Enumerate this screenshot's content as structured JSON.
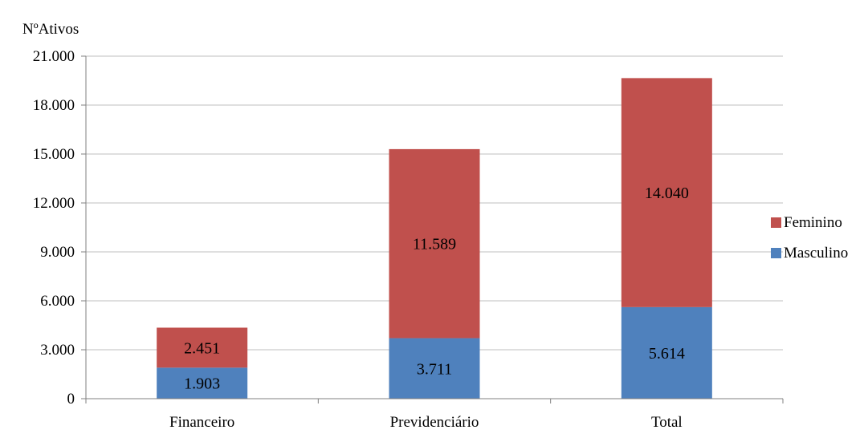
{
  "chart_data": {
    "type": "bar",
    "stacked": true,
    "title": "",
    "ylabel": "NºAtivos",
    "xlabel": "",
    "categories": [
      "Financeiro",
      "Previdenciário",
      "Total"
    ],
    "series": [
      {
        "name": "Masculino",
        "values": [
          1903,
          3711,
          5614
        ],
        "labels": [
          "1.903",
          "3.711",
          "5.614"
        ],
        "color": "#4f81bd"
      },
      {
        "name": "Feminino",
        "values": [
          2451,
          11589,
          14040
        ],
        "labels": [
          "2.451",
          "11.589",
          "14.040"
        ],
        "color": "#c0504d"
      }
    ],
    "ylim": [
      0,
      21000
    ],
    "yticks": [
      0,
      3000,
      6000,
      9000,
      12000,
      15000,
      18000,
      21000
    ],
    "ytick_labels": [
      "0",
      "3.000",
      "6.000",
      "9.000",
      "12.000",
      "15.000",
      "18.000",
      "21.000"
    ],
    "grid": true,
    "legend": {
      "placement": "right",
      "entries": [
        "Feminino",
        "Masculino"
      ]
    }
  }
}
